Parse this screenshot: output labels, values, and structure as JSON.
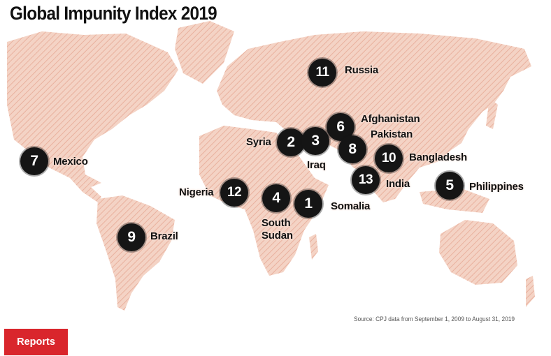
{
  "map": {
    "title": "Global Impunity Index 2019",
    "source": "Source: CPJ data from September 1, 2009 to August 31, 2019",
    "colors": {
      "land": "#f2c9b8",
      "land_hatch": "#e7a894",
      "marker": "#151515",
      "ocean": "#ffffff"
    },
    "countries": [
      {
        "rank": "1",
        "name": "Somalia"
      },
      {
        "rank": "2",
        "name": "Syria"
      },
      {
        "rank": "3",
        "name": "Iraq"
      },
      {
        "rank": "4",
        "name": "South Sudan"
      },
      {
        "rank": "5",
        "name": "Philippines"
      },
      {
        "rank": "6",
        "name": "Afghanistan"
      },
      {
        "rank": "7",
        "name": "Mexico"
      },
      {
        "rank": "8",
        "name": "Pakistan"
      },
      {
        "rank": "9",
        "name": "Brazil"
      },
      {
        "rank": "10",
        "name": "Bangladesh"
      },
      {
        "rank": "11",
        "name": "Russia"
      },
      {
        "rank": "12",
        "name": "Nigeria"
      },
      {
        "rank": "13",
        "name": "India"
      }
    ]
  },
  "footer": {
    "reports_label": "Reports",
    "reports_color": "#d9262c"
  }
}
